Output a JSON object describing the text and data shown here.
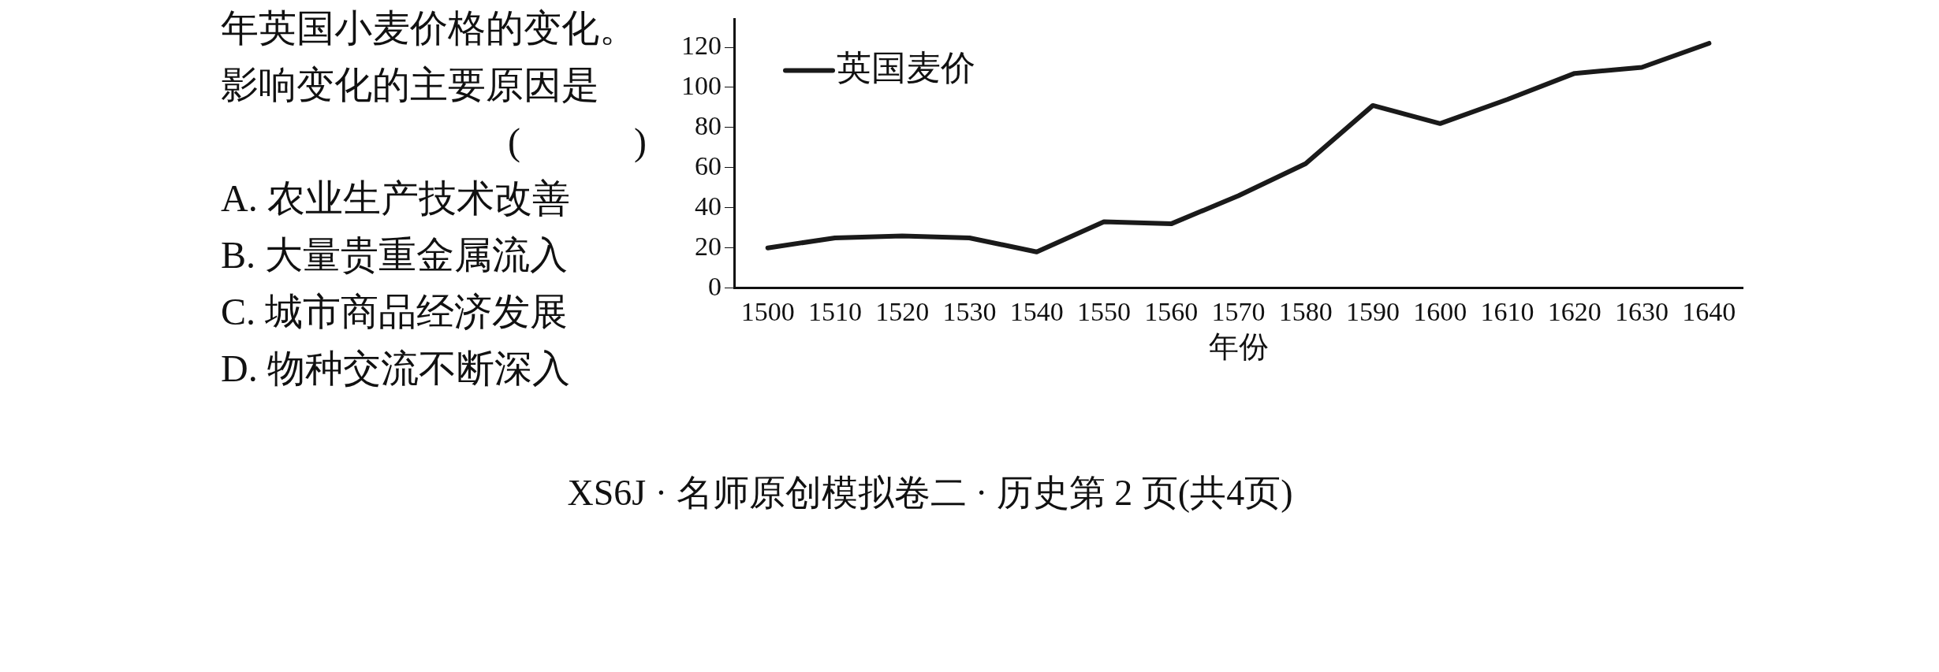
{
  "chart_data": {
    "type": "line",
    "categories": [
      "1500",
      "1510",
      "1520",
      "1530",
      "1540",
      "1550",
      "1560",
      "1570",
      "1580",
      "1590",
      "1600",
      "1610",
      "1620",
      "1630",
      "1640"
    ],
    "series": [
      {
        "name": "英国麦价",
        "color": "#1a1a1a",
        "values": [
          20,
          25,
          26,
          25,
          18,
          33,
          32,
          46,
          62,
          91,
          82,
          94,
          107,
          110,
          122
        ]
      }
    ],
    "xlabel": "年份",
    "ylim": [
      0,
      134
    ],
    "yticks": [
      0,
      20,
      40,
      60,
      80,
      100,
      120
    ],
    "grid": false,
    "legend": "top left",
    "marker": "none",
    "line_style": "solid",
    "annotations": [
      "年英国小麦价格的变化。",
      "影响变化的主要原因是",
      "(　　　)",
      "A. 农业生产技术改善",
      "B. 大量贵重金属流入",
      "C. 城市商品经济发展",
      "D. 物种交流不断深入",
      "XS6J · 名师原创模拟卷二 · 历史第 2 页(共4页)"
    ]
  }
}
